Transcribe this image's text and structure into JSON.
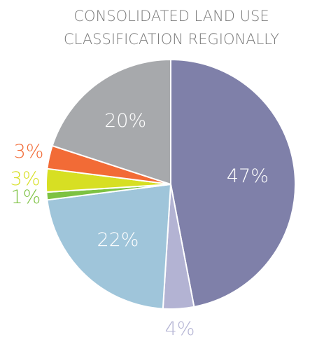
{
  "chart_data": {
    "type": "pie",
    "title": [
      "CONSOLIDATED LAND USE",
      "CLASSIFICATION REGIONALLY"
    ],
    "categories": [
      null,
      null,
      null,
      null,
      null,
      null,
      null
    ],
    "values": [
      47,
      4,
      22,
      1,
      3,
      3,
      20
    ],
    "value_labels": [
      "47%",
      "4%",
      "22%",
      "1%",
      "3%",
      "3%",
      "20%"
    ],
    "colors": [
      "#7f80a9",
      "#b3b3d3",
      "#9fc5da",
      "#7dc242",
      "#d7df23",
      "#f26b36",
      "#a7a9ac"
    ]
  }
}
